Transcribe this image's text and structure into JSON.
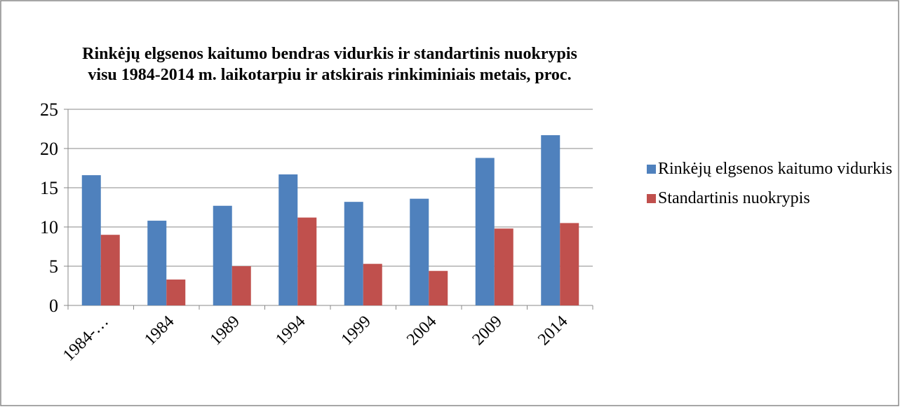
{
  "chart_data": {
    "type": "bar",
    "title": [
      "Rinkėjų elgsenos kaitumo bendras vidurkis ir standartinis nuokrypis",
      "visu 1984-2014 m. laikotarpiu ir atskirais rinkiminiais metais, proc."
    ],
    "categories": [
      "1984-…",
      "1984",
      "1989",
      "1994",
      "1999",
      "2004",
      "2009",
      "2014"
    ],
    "series": [
      {
        "name": "Rinkėjų elgsenos kaitumo vidurkis",
        "color": "#4f81bd",
        "values": [
          16.6,
          10.8,
          12.7,
          16.7,
          13.2,
          13.6,
          18.8,
          21.7
        ]
      },
      {
        "name": "Standartinis nuokrypis",
        "color": "#c0504d",
        "values": [
          9.0,
          3.3,
          5.0,
          11.2,
          5.3,
          4.4,
          9.8,
          10.5
        ]
      }
    ],
    "ylim": [
      0,
      25
    ],
    "yticks": [
      0,
      5,
      10,
      15,
      20,
      25
    ],
    "grid": true,
    "legend": "right"
  }
}
